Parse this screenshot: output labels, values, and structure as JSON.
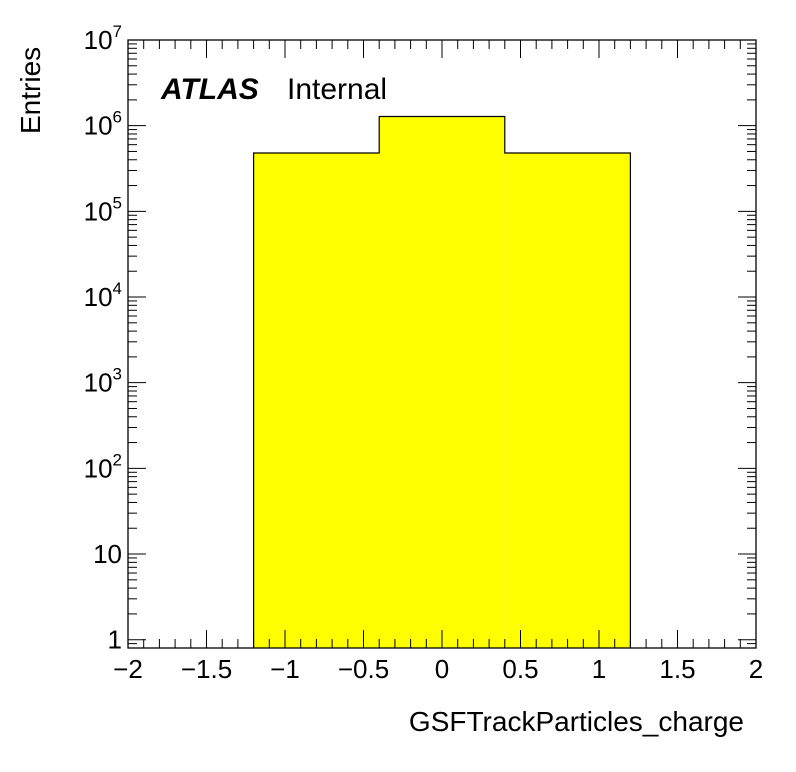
{
  "chart_data": {
    "type": "bar",
    "title": "",
    "xlabel": "GSFTrackParticles_charge",
    "ylabel": "Entries",
    "xlim": [
      -2,
      2
    ],
    "ylim": [
      0.8,
      10000000
    ],
    "y_scale": "log",
    "grid": false,
    "legend": "none",
    "bar_color": "#ffff00",
    "bar_edge_color": "#000000",
    "bins": [
      {
        "low": -1.2,
        "high": -0.4,
        "value": 480000
      },
      {
        "low": -0.4,
        "high": 0.4,
        "value": 1280000
      },
      {
        "low": 0.4,
        "high": 1.2,
        "value": 480000
      }
    ],
    "x_ticks": [
      {
        "value": -2,
        "label": "−2"
      },
      {
        "value": -1.5,
        "label": "−1.5"
      },
      {
        "value": -1,
        "label": "−1"
      },
      {
        "value": -0.5,
        "label": "−0.5"
      },
      {
        "value": 0,
        "label": "0"
      },
      {
        "value": 0.5,
        "label": "0.5"
      },
      {
        "value": 1,
        "label": "1"
      },
      {
        "value": 1.5,
        "label": "1.5"
      },
      {
        "value": 2,
        "label": "2"
      }
    ],
    "y_ticks": [
      {
        "value": 1,
        "base": "1",
        "exp": ""
      },
      {
        "value": 10,
        "base": "10",
        "exp": ""
      },
      {
        "value": 100,
        "base": "10",
        "exp": "2"
      },
      {
        "value": 1000,
        "base": "10",
        "exp": "3"
      },
      {
        "value": 10000,
        "base": "10",
        "exp": "4"
      },
      {
        "value": 100000,
        "base": "10",
        "exp": "5"
      },
      {
        "value": 1000000,
        "base": "10",
        "exp": "6"
      },
      {
        "value": 10000000,
        "base": "10",
        "exp": "7"
      }
    ],
    "annotations": {
      "experiment": "ATLAS",
      "status": "Internal"
    }
  }
}
